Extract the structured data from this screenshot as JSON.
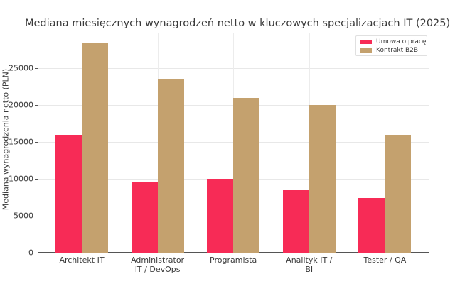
{
  "chart_data": {
    "type": "bar",
    "title": "Mediana miesięcznych wynagrodzeń netto w kluczowych specjalizacjach IT (2025)",
    "xlabel": "",
    "ylabel": "Mediana wynagrodzenia netto (PLN)",
    "ylim": [
      0,
      29800
    ],
    "yticks": [
      0,
      5000,
      10000,
      15000,
      20000,
      25000
    ],
    "grid": true,
    "legend_position": "upper right",
    "categories": [
      "Architekt IT",
      "Administrator IT / DevOps",
      "Programista",
      "Analityk IT / BI",
      "Tester / QA"
    ],
    "category_labels": [
      [
        "Architekt IT"
      ],
      [
        "Administrator",
        "IT / DevOps"
      ],
      [
        "Programista"
      ],
      [
        "Analityk IT /",
        "BI"
      ],
      [
        "Tester / QA"
      ]
    ],
    "series": [
      {
        "name": "Umowa o pracę",
        "color": "#f72b56",
        "values": [
          16000,
          9500,
          10000,
          8500,
          7400
        ]
      },
      {
        "name": "Kontrakt B2B",
        "color": "#c4a16e",
        "values": [
          28500,
          23500,
          21000,
          20000,
          16000
        ]
      }
    ]
  }
}
